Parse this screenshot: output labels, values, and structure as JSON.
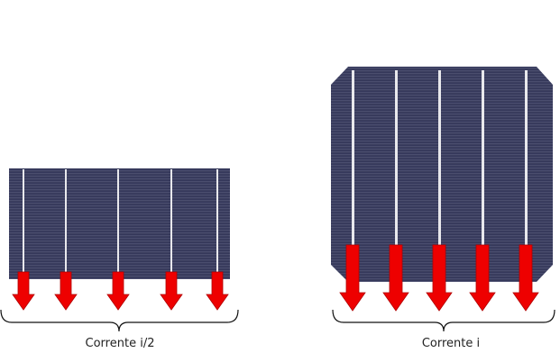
{
  "colors": {
    "cell_body": "#3d4060",
    "cell_line_dark": "#333654",
    "cell_line_light": "#4a4d6e",
    "busbar": "#e8e8ec",
    "arrow": "#ee0000",
    "arrow_edge": "#b00000",
    "bracket": "#111111"
  },
  "half_cell": {
    "caption": "Corrente i/2",
    "busbar_count": 5,
    "arrow_count": 5,
    "arrow_icon": "down-arrow-icon"
  },
  "full_cell": {
    "caption": "Corrente i",
    "busbar_count": 5,
    "arrow_count": 5,
    "arrow_icon": "down-arrow-icon"
  }
}
